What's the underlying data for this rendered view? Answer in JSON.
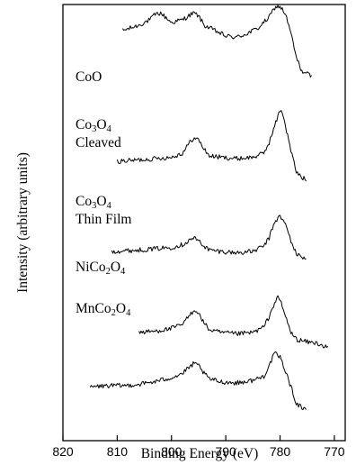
{
  "chart_data": {
    "type": "line",
    "title": "",
    "xlabel": "Binding Energy (eV)",
    "ylabel": "Intensity (arbitrary units)",
    "xlim": [
      820,
      768
    ],
    "x_reversed": true,
    "xticks": [
      820,
      810,
      800,
      790,
      780,
      770
    ],
    "y_scale": "arbitrary, traces vertically offset",
    "grid": false,
    "legend": "labels placed left of each trace",
    "series": [
      {
        "name": "CoO",
        "label_lines": [
          [
            {
              "t": "CoO"
            }
          ]
        ],
        "x": [
          809,
          806,
          804,
          803,
          802,
          800,
          798,
          796,
          795,
          794,
          792,
          790,
          788,
          786,
          784,
          782,
          781,
          780,
          779,
          778,
          777,
          776,
          774
        ],
        "y": [
          0.82,
          0.86,
          0.9,
          0.94,
          0.95,
          0.88,
          0.9,
          0.95,
          0.93,
          0.86,
          0.82,
          0.78,
          0.77,
          0.8,
          0.84,
          0.92,
          0.99,
          1.0,
          0.94,
          0.8,
          0.62,
          0.52,
          0.48
        ]
      },
      {
        "name": "Co3O4 Cleaved",
        "label_lines": [
          [
            {
              "t": "Co"
            },
            {
              "t": "3",
              "sub": true
            },
            {
              "t": "O"
            },
            {
              "t": "4",
              "sub": true
            }
          ],
          [
            {
              "t": "Cleaved"
            }
          ]
        ],
        "x": [
          810,
          806,
          803,
          800,
          798,
          797,
          796,
          795,
          794,
          793,
          791,
          788,
          785,
          783,
          782,
          781,
          780,
          779.5,
          779,
          778,
          777,
          776,
          775
        ],
        "y": [
          0.54,
          0.55,
          0.56,
          0.57,
          0.6,
          0.66,
          0.71,
          0.7,
          0.63,
          0.58,
          0.57,
          0.56,
          0.57,
          0.6,
          0.68,
          0.8,
          0.92,
          0.9,
          0.8,
          0.62,
          0.46,
          0.42,
          0.4
        ]
      },
      {
        "name": "Co3O4 Thin Film",
        "label_lines": [
          [
            {
              "t": "Co"
            },
            {
              "t": "3",
              "sub": true
            },
            {
              "t": "O"
            },
            {
              "t": "4",
              "sub": true
            }
          ],
          [
            {
              "t": "Thin Film"
            }
          ]
        ],
        "x": [
          811,
          806,
          803,
          800,
          798,
          796,
          795,
          794,
          793,
          791,
          788,
          785,
          783,
          782,
          781,
          780,
          779,
          778,
          777,
          776,
          775
        ],
        "y": [
          0.3,
          0.31,
          0.32,
          0.33,
          0.35,
          0.4,
          0.38,
          0.34,
          0.31,
          0.3,
          0.29,
          0.3,
          0.34,
          0.4,
          0.52,
          0.56,
          0.5,
          0.38,
          0.28,
          0.26,
          0.25
        ]
      },
      {
        "name": "NiCo2O4",
        "label_lines": [
          [
            {
              "t": "NiCo"
            },
            {
              "t": "2",
              "sub": true
            },
            {
              "t": "O"
            },
            {
              "t": "4",
              "sub": true
            }
          ]
        ],
        "x": [
          806,
          803,
          800,
          798,
          797,
          796,
          795.5,
          795,
          794,
          793,
          791,
          788,
          785,
          783,
          782,
          781,
          780.5,
          780,
          779,
          778,
          777,
          775,
          773,
          772,
          771
        ],
        "y": [
          0.22,
          0.23,
          0.25,
          0.28,
          0.33,
          0.38,
          0.39,
          0.36,
          0.29,
          0.24,
          0.22,
          0.21,
          0.22,
          0.26,
          0.34,
          0.44,
          0.48,
          0.46,
          0.34,
          0.22,
          0.17,
          0.15,
          0.14,
          0.12,
          0.1
        ]
      },
      {
        "name": "MnCo2O4",
        "label_lines": [
          [
            {
              "t": "MnCo"
            },
            {
              "t": "2",
              "sub": true
            },
            {
              "t": "O"
            },
            {
              "t": "4",
              "sub": true
            }
          ]
        ],
        "x": [
          815,
          812,
          809,
          806,
          803,
          800,
          798,
          796,
          795,
          794,
          793,
          791,
          788,
          785,
          783,
          782,
          781,
          780,
          779,
          778,
          777,
          776,
          775
        ],
        "y": [
          0.1,
          0.11,
          0.11,
          0.12,
          0.14,
          0.17,
          0.2,
          0.27,
          0.26,
          0.2,
          0.16,
          0.14,
          0.13,
          0.15,
          0.18,
          0.26,
          0.35,
          0.32,
          0.22,
          0.1,
          -0.02,
          -0.05,
          -0.06
        ]
      }
    ]
  }
}
